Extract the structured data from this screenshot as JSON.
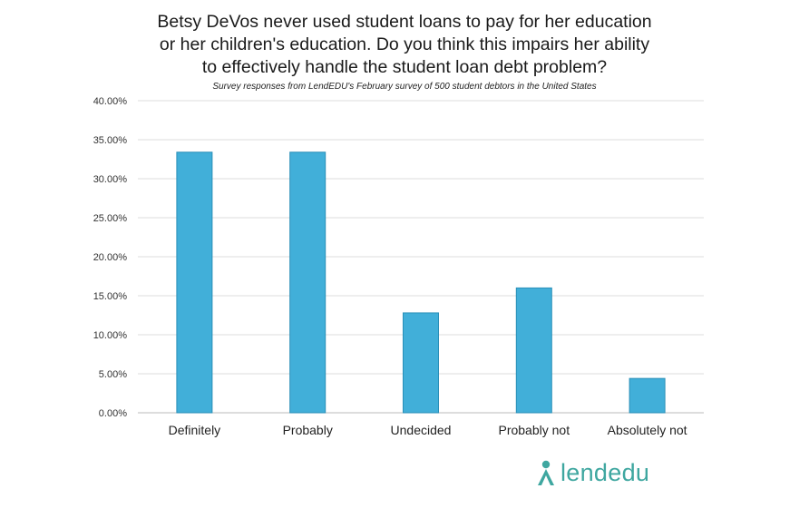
{
  "chart_data": {
    "type": "bar",
    "title_lines": [
      "Betsy DeVos never used student loans to pay for her education",
      "or her children's education. Do you think this impairs her ability",
      "to effectively handle the student loan debt problem?"
    ],
    "subtitle": "Survey responses from LendEDU's February survey of 500 student debtors in the United States",
    "categories": [
      "Definitely",
      "Probably",
      "Undecided",
      "Probably not",
      "Absolutely not"
    ],
    "values": [
      33.4,
      33.4,
      12.8,
      16.0,
      4.4
    ],
    "xlabel": "",
    "ylabel": "",
    "ylim": [
      0,
      40
    ],
    "yticks": [
      "0.00%",
      "5.00%",
      "10.00%",
      "15.00%",
      "20.00%",
      "25.00%",
      "30.00%",
      "35.00%",
      "40.00%"
    ],
    "grid": true,
    "bar_color": "#41afd9",
    "bar_edge_color": "#2a8fb8"
  },
  "logo": {
    "text": "lendedu",
    "color": "#3fa7a0"
  }
}
